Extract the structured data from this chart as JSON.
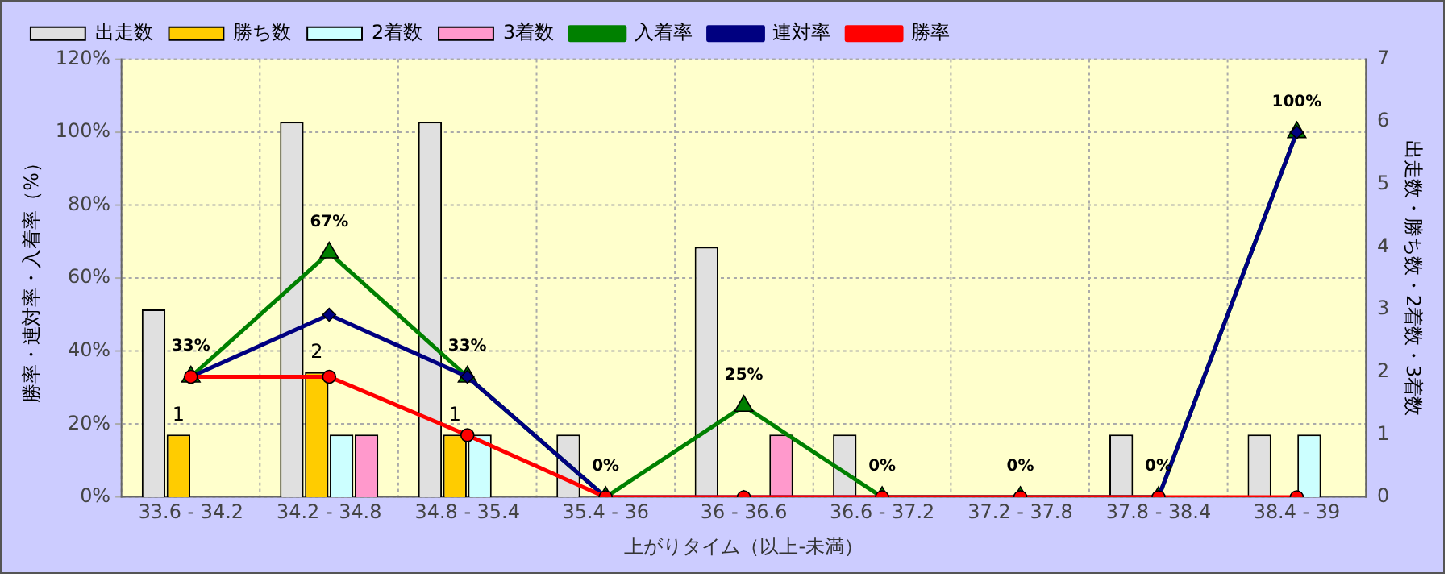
{
  "chart_data": {
    "type": "bar",
    "categories": [
      "33.6 - 34.2",
      "34.2 - 34.8",
      "34.8 - 35.4",
      "35.4 - 36",
      "36 - 36.6",
      "36.6 - 37.2",
      "37.2 - 37.8",
      "37.8 - 38.4",
      "38.4 - 39"
    ],
    "xlabel": "上がりタイム（以上-未満）",
    "ylabel": "勝率・連対率・入着率（%）",
    "y2label": "出走数・勝ち数・2着数・3着数",
    "ylim": [
      0,
      120
    ],
    "yticks": [
      {
        "value": 0,
        "label": "0%"
      },
      {
        "value": 20,
        "label": "20%"
      },
      {
        "value": 40,
        "label": "40%"
      },
      {
        "value": 60,
        "label": "60%"
      },
      {
        "value": 80,
        "label": "80%"
      },
      {
        "value": 100,
        "label": "100%"
      },
      {
        "value": 120,
        "label": "120%"
      }
    ],
    "y2lim": [
      0,
      7
    ],
    "y2ticks": [
      0,
      1,
      2,
      3,
      4,
      5,
      6,
      7
    ],
    "grid": true,
    "legend": "top",
    "series": [
      {
        "name": "出走数",
        "axis": "y2",
        "color": "#e0e0e0",
        "values": [
          3,
          6,
          6,
          1,
          4,
          1,
          0,
          1,
          1
        ]
      },
      {
        "name": "勝ち数",
        "axis": "y2",
        "color": "#ffcc00",
        "values": [
          1,
          2,
          1,
          0,
          0,
          0,
          0,
          0,
          0
        ],
        "value_labels": [
          "1",
          "2",
          "1",
          null,
          null,
          null,
          null,
          null,
          null
        ]
      },
      {
        "name": "2着数",
        "axis": "y2",
        "color": "#ccffff",
        "values": [
          0,
          1,
          1,
          0,
          0,
          0,
          0,
          0,
          1
        ]
      },
      {
        "name": "3着数",
        "axis": "y2",
        "color": "#ff99cc",
        "values": [
          0,
          1,
          0,
          0,
          1,
          0,
          0,
          0,
          0
        ]
      },
      {
        "name": "入着率",
        "type": "line",
        "axis": "y",
        "color": "#008000",
        "marker": "triangle",
        "values": [
          33,
          67,
          33,
          0,
          25,
          0,
          0,
          0,
          100
        ],
        "value_labels": [
          "33%",
          "67%",
          "33%",
          "0%",
          "25%",
          "0%",
          "0%",
          "0%",
          "100%"
        ]
      },
      {
        "name": "連対率",
        "type": "line",
        "axis": "y",
        "color": "#000080",
        "marker": "diamond",
        "values": [
          33,
          50,
          33,
          0,
          0,
          0,
          0,
          0,
          100
        ]
      },
      {
        "name": "勝率",
        "type": "line",
        "axis": "y",
        "color": "#ff0000",
        "marker": "circle",
        "values": [
          33,
          33,
          17,
          0,
          0,
          0,
          0,
          0,
          0
        ]
      }
    ]
  }
}
